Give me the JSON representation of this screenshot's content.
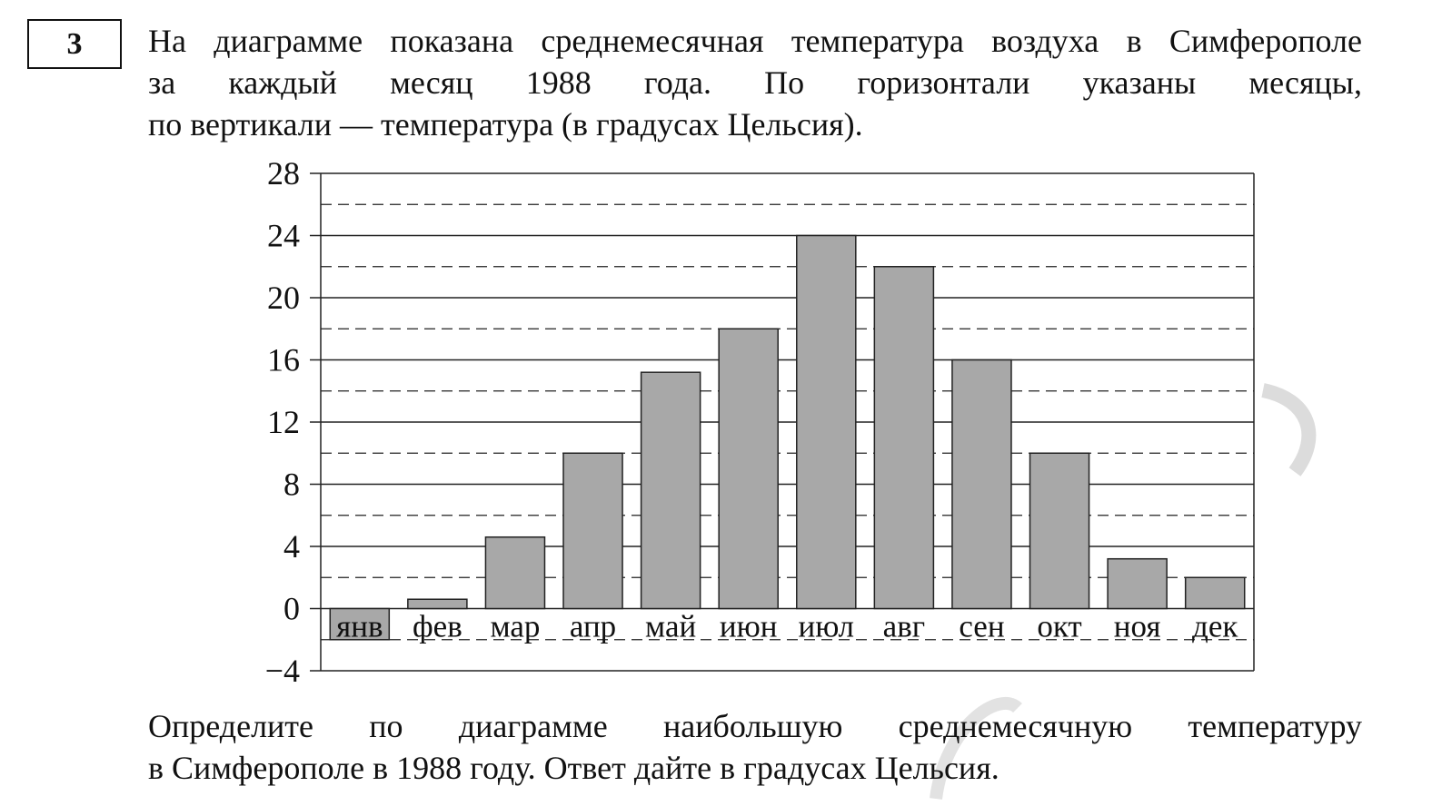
{
  "task": {
    "number": "3",
    "intro_lines": [
      "На диаграмме показана среднемесячная температура воздуха в Симферополе",
      "за каждый месяц 1988 года. По горизонтали указаны месяцы,",
      "по вертикали — температура (в градусах Цельсия)."
    ],
    "question_lines": [
      "Определите по диаграмме наибольшую среднемесячную температуру",
      "в Симферополе в 1988 году. Ответ дайте в градусах Цельсия."
    ]
  },
  "chart_data": {
    "type": "bar",
    "categories": [
      "янв",
      "фев",
      "мар",
      "апр",
      "май",
      "июн",
      "июл",
      "авг",
      "сен",
      "окт",
      "ноя",
      "дек"
    ],
    "values": [
      -2,
      0.6,
      4.6,
      10,
      15.2,
      18,
      24,
      22,
      16,
      10,
      3.2,
      2
    ],
    "y_ticks": [
      28,
      24,
      20,
      16,
      12,
      8,
      4,
      0,
      -4
    ],
    "y_tick_labels": [
      "28",
      "24",
      "20",
      "16",
      "12",
      "8",
      "4",
      "0",
      "−4"
    ],
    "ylim": [
      -4,
      28
    ],
    "major_grid_step": 4,
    "minor_dashed_grid_step": 4,
    "minor_dashed_offset": 2,
    "grid": true,
    "bar_color": "#a8a8a8",
    "bar_edge_color": "#222222"
  }
}
